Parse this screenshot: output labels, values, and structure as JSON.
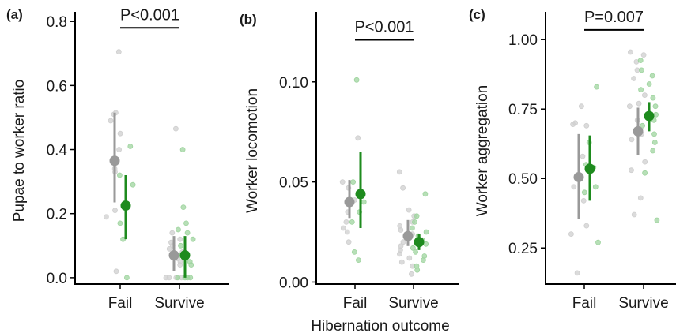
{
  "figure": {
    "shared_xlabel": "Hibernation outcome"
  },
  "chart_data": [
    {
      "type": "scatter",
      "panel_label": "(a)",
      "title": "",
      "xlabel": "",
      "ylabel": "Pupae to worker ratio",
      "categories": [
        "Fail",
        "Survive"
      ],
      "ylim": [
        -0.02,
        0.83
      ],
      "yticks": [
        0.0,
        0.2,
        0.4,
        0.6,
        0.8
      ],
      "ytick_labels": [
        "0.0",
        "0.2",
        "0.4",
        "0.6",
        "0.8"
      ],
      "significance": {
        "text": "P<0.001",
        "y": 0.78
      },
      "colors": {
        "grey": "#999999",
        "green": "#1e8b1e",
        "grey_points": "#cfcfcf",
        "green_points": "#9fd49f"
      },
      "series": [
        {
          "color_key": "grey",
          "summary": [
            {
              "category": "Fail",
              "mean": 0.365,
              "lower": 0.235,
              "upper": 0.515
            },
            {
              "category": "Survive",
              "mean": 0.07,
              "lower": 0.02,
              "upper": 0.13
            }
          ],
          "points": [
            [
              0,
              0.705
            ],
            [
              0,
              0.515
            ],
            [
              0,
              0.51
            ],
            [
              0,
              0.49
            ],
            [
              0,
              0.45
            ],
            [
              0,
              0.4
            ],
            [
              0,
              0.34
            ],
            [
              0,
              0.33
            ],
            [
              0,
              0.21
            ],
            [
              0,
              0.19
            ],
            [
              0,
              0.02
            ],
            [
              1,
              0.465
            ],
            [
              1,
              0.14
            ],
            [
              1,
              0.12
            ],
            [
              1,
              0.11
            ],
            [
              1,
              0.1
            ],
            [
              1,
              0.09
            ],
            [
              1,
              0.08
            ],
            [
              1,
              0.06
            ],
            [
              1,
              0.05
            ],
            [
              1,
              0.04
            ],
            [
              1,
              0.0
            ],
            [
              1,
              0.0
            ],
            [
              1,
              0.0
            ],
            [
              1,
              0.0
            ]
          ]
        },
        {
          "color_key": "green",
          "summary": [
            {
              "category": "Fail",
              "mean": 0.225,
              "lower": 0.12,
              "upper": 0.32
            },
            {
              "category": "Survive",
              "mean": 0.07,
              "lower": 0.0,
              "upper": 0.13
            }
          ],
          "points": [
            [
              0,
              0.41
            ],
            [
              0,
              0.32
            ],
            [
              0,
              0.29
            ],
            [
              0,
              0.17
            ],
            [
              0,
              0.12
            ],
            [
              0,
              0.0
            ],
            [
              1,
              0.4
            ],
            [
              1,
              0.22
            ],
            [
              1,
              0.17
            ],
            [
              1,
              0.15
            ],
            [
              1,
              0.14
            ],
            [
              1,
              0.12
            ],
            [
              1,
              0.1
            ],
            [
              1,
              0.07
            ],
            [
              1,
              0.05
            ],
            [
              1,
              0.04
            ],
            [
              1,
              0.0
            ],
            [
              1,
              0.0
            ],
            [
              1,
              0.0
            ],
            [
              1,
              0.0
            ]
          ]
        }
      ]
    },
    {
      "type": "scatter",
      "panel_label": "(b)",
      "title": "",
      "xlabel": "",
      "ylabel": "Worker locomotion",
      "categories": [
        "Fail",
        "Survive"
      ],
      "ylim": [
        -0.001,
        0.135
      ],
      "yticks": [
        0.0,
        0.05,
        0.1
      ],
      "ytick_labels": [
        "0.00",
        "0.05",
        "0.10"
      ],
      "significance": {
        "text": "P<0.001",
        "y": 0.121
      },
      "colors": {
        "grey": "#999999",
        "green": "#1e8b1e",
        "grey_points": "#cfcfcf",
        "green_points": "#9fd49f"
      },
      "series": [
        {
          "color_key": "grey",
          "summary": [
            {
              "category": "Fail",
              "mean": 0.04,
              "lower": 0.032,
              "upper": 0.051
            },
            {
              "category": "Survive",
              "mean": 0.023,
              "lower": 0.018,
              "upper": 0.031
            }
          ],
          "points": [
            [
              0,
              0.072
            ],
            [
              0,
              0.05
            ],
            [
              0,
              0.047
            ],
            [
              0,
              0.041
            ],
            [
              0,
              0.035
            ],
            [
              0,
              0.03
            ],
            [
              0,
              0.027
            ],
            [
              0,
              0.025
            ],
            [
              0,
              0.02
            ],
            [
              1,
              0.055
            ],
            [
              1,
              0.047
            ],
            [
              1,
              0.036
            ],
            [
              1,
              0.033
            ],
            [
              1,
              0.03
            ],
            [
              1,
              0.028
            ],
            [
              1,
              0.026
            ],
            [
              1,
              0.024
            ],
            [
              1,
              0.022
            ],
            [
              1,
              0.02
            ],
            [
              1,
              0.018
            ],
            [
              1,
              0.016
            ],
            [
              1,
              0.014
            ],
            [
              1,
              0.012
            ],
            [
              1,
              0.01
            ],
            [
              1,
              0.008
            ],
            [
              1,
              0.004
            ]
          ]
        },
        {
          "color_key": "green",
          "summary": [
            {
              "category": "Fail",
              "mean": 0.044,
              "lower": 0.027,
              "upper": 0.065
            },
            {
              "category": "Survive",
              "mean": 0.02,
              "lower": 0.016,
              "upper": 0.024
            }
          ],
          "points": [
            [
              0,
              0.101
            ],
            [
              0,
              0.05
            ],
            [
              0,
              0.04
            ],
            [
              0,
              0.035
            ],
            [
              0,
              0.03
            ],
            [
              0,
              0.015
            ],
            [
              0,
              0.011
            ],
            [
              1,
              0.044
            ],
            [
              1,
              0.033
            ],
            [
              1,
              0.03
            ],
            [
              1,
              0.027
            ],
            [
              1,
              0.025
            ],
            [
              1,
              0.023
            ],
            [
              1,
              0.021
            ],
            [
              1,
              0.019
            ],
            [
              1,
              0.017
            ],
            [
              1,
              0.015
            ],
            [
              1,
              0.013
            ],
            [
              1,
              0.011
            ],
            [
              1,
              0.008
            ],
            [
              1,
              0.006
            ]
          ]
        }
      ]
    },
    {
      "type": "scatter",
      "panel_label": "(c)",
      "title": "",
      "xlabel": "",
      "ylabel": "Worker aggregation",
      "categories": [
        "Fail",
        "Survive"
      ],
      "ylim": [
        0.12,
        1.1
      ],
      "yticks": [
        0.25,
        0.5,
        0.75,
        1.0
      ],
      "ytick_labels": [
        "0.25",
        "0.50",
        "0.75",
        "1.00"
      ],
      "significance": {
        "text": "P=0.007",
        "y": 1.035
      },
      "colors": {
        "grey": "#999999",
        "green": "#1e8b1e",
        "grey_points": "#cfcfcf",
        "green_points": "#9fd49f"
      },
      "series": [
        {
          "color_key": "grey",
          "summary": [
            {
              "category": "Fail",
              "mean": 0.505,
              "lower": 0.355,
              "upper": 0.66
            },
            {
              "category": "Survive",
              "mean": 0.67,
              "lower": 0.585,
              "upper": 0.755
            }
          ],
          "points": [
            [
              0,
              0.76
            ],
            [
              0,
              0.7
            ],
            [
              0,
              0.695
            ],
            [
              0,
              0.69
            ],
            [
              0,
              0.58
            ],
            [
              0,
              0.47
            ],
            [
              0,
              0.42
            ],
            [
              0,
              0.33
            ],
            [
              0,
              0.3
            ],
            [
              0,
              0.16
            ],
            [
              1,
              0.955
            ],
            [
              1,
              0.945
            ],
            [
              1,
              0.92
            ],
            [
              1,
              0.89
            ],
            [
              1,
              0.86
            ],
            [
              1,
              0.8
            ],
            [
              1,
              0.77
            ],
            [
              1,
              0.76
            ],
            [
              1,
              0.71
            ],
            [
              1,
              0.66
            ],
            [
              1,
              0.64
            ],
            [
              1,
              0.56
            ],
            [
              1,
              0.53
            ],
            [
              1,
              0.43
            ],
            [
              1,
              0.37
            ]
          ]
        },
        {
          "color_key": "green",
          "summary": [
            {
              "category": "Fail",
              "mean": 0.535,
              "lower": 0.42,
              "upper": 0.655
            },
            {
              "category": "Survive",
              "mean": 0.725,
              "lower": 0.67,
              "upper": 0.775
            }
          ],
          "points": [
            [
              0,
              0.83
            ],
            [
              0,
              0.63
            ],
            [
              0,
              0.55
            ],
            [
              0,
              0.54
            ],
            [
              0,
              0.47
            ],
            [
              0,
              0.45
            ],
            [
              0,
              0.27
            ],
            [
              1,
              0.925
            ],
            [
              1,
              0.89
            ],
            [
              1,
              0.87
            ],
            [
              1,
              0.84
            ],
            [
              1,
              0.82
            ],
            [
              1,
              0.79
            ],
            [
              1,
              0.76
            ],
            [
              1,
              0.73
            ],
            [
              1,
              0.71
            ],
            [
              1,
              0.69
            ],
            [
              1,
              0.66
            ],
            [
              1,
              0.63
            ],
            [
              1,
              0.6
            ],
            [
              1,
              0.52
            ],
            [
              1,
              0.35
            ]
          ]
        }
      ]
    }
  ]
}
